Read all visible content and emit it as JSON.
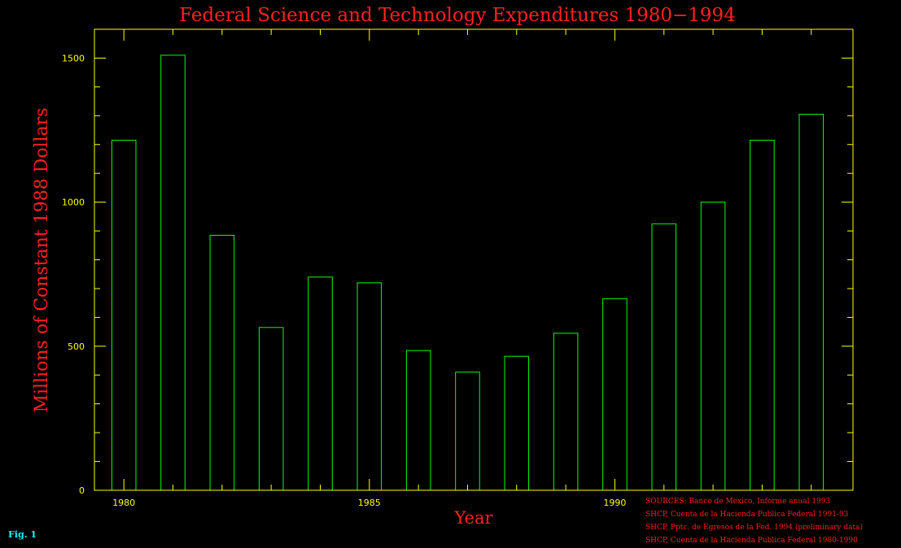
{
  "colors": {
    "background": "#000000",
    "axis": "#ffff00",
    "bars": "#00ff00",
    "title": "#ff2020",
    "sources": "#ff2020",
    "fig_label": "#00ffff"
  },
  "fig_label": "Fig. 1",
  "sources": [
    "SOURCES: Banco de Mexico, Informe anual 1993",
    "SHCP, Cuenta de la Hacienda Publica Federal 1991-93",
    "SHCP, Pptc. de Egresos de la Fed. 1994 (preliminary data)",
    "SHCP, Cuenta de la Hacienda Publica Federal 1980-1990"
  ],
  "chart_data": {
    "type": "bar",
    "title": "Federal Science and Technology Expenditures 1980−1994",
    "xlabel": "Year",
    "ylabel": "Millions of Constant 1988 Dollars",
    "x": [
      1980,
      1981,
      1982,
      1983,
      1984,
      1985,
      1986,
      1987,
      1988,
      1989,
      1990,
      1991,
      1992,
      1993,
      1994
    ],
    "values": [
      1215,
      1510,
      885,
      565,
      740,
      720,
      485,
      410,
      465,
      545,
      665,
      925,
      1000,
      1215,
      1305
    ],
    "xlim": [
      1979.4,
      1994.85
    ],
    "ylim": [
      0,
      1600
    ],
    "x_ticks": [
      1980,
      1985,
      1990
    ],
    "y_ticks": [
      0,
      500,
      1000,
      1500
    ],
    "y_minor_step": 100,
    "grid": false,
    "legend": "none"
  }
}
